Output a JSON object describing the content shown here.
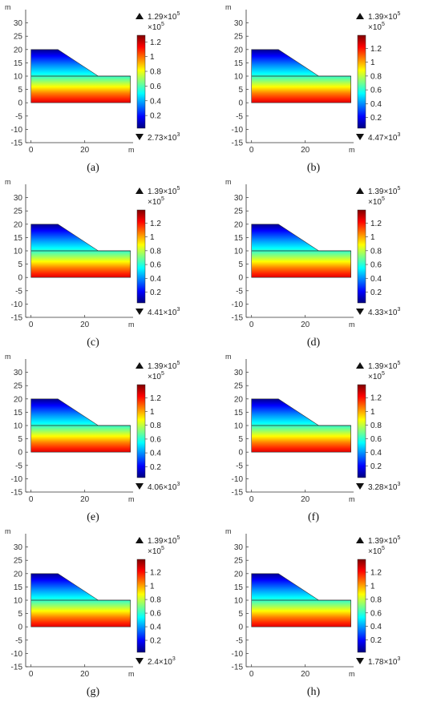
{
  "chart_data": [
    {
      "type": "heatmap",
      "panel_label": "(a)",
      "y_axis_unit": "m",
      "x_axis_unit": "m",
      "y_ticks": [
        30,
        25,
        20,
        15,
        10,
        5,
        0,
        -5,
        -10,
        -15
      ],
      "x_ticks": [
        0,
        20
      ],
      "ylim": [
        -15,
        35
      ],
      "xlim": [
        -2,
        38
      ],
      "max_value": "1.29×10",
      "max_exp": "5",
      "min_value": "2.73×10",
      "min_exp": "3",
      "colorbar_multiplier": "×10",
      "colorbar_multiplier_exp": "5",
      "colorbar_ticks": [
        "1.2",
        "1",
        "0.8",
        "0.6",
        "0.4",
        "0.2"
      ],
      "colorbar_range": [
        0.0273,
        1.29
      ],
      "domain": {
        "crest_height": 20,
        "toe_height": 10,
        "crest_x_end": 10,
        "toe_x_start": 25,
        "x_max": 37,
        "base": 0,
        "water_table": 10
      }
    },
    {
      "type": "heatmap",
      "panel_label": "(b)",
      "y_axis_unit": "m",
      "x_axis_unit": "m",
      "y_ticks": [
        30,
        25,
        20,
        15,
        10,
        5,
        0,
        -5,
        -10,
        -15
      ],
      "x_ticks": [
        0,
        20
      ],
      "ylim": [
        -15,
        35
      ],
      "xlim": [
        -2,
        38
      ],
      "max_value": "1.39×10",
      "max_exp": "5",
      "min_value": "4.47×10",
      "min_exp": "3",
      "colorbar_multiplier": "×10",
      "colorbar_multiplier_exp": "5",
      "colorbar_ticks": [
        "1.2",
        "1",
        "0.8",
        "0.6",
        "0.4",
        "0.2"
      ],
      "colorbar_range": [
        0.0447,
        1.39
      ],
      "domain": {
        "crest_height": 20,
        "toe_height": 10,
        "crest_x_end": 10,
        "toe_x_start": 25,
        "x_max": 37,
        "base": 0,
        "water_table": 10
      }
    },
    {
      "type": "heatmap",
      "panel_label": "(c)",
      "y_axis_unit": "m",
      "x_axis_unit": "m",
      "y_ticks": [
        30,
        25,
        20,
        15,
        10,
        5,
        0,
        -5,
        -10,
        -15
      ],
      "x_ticks": [
        0,
        20
      ],
      "ylim": [
        -15,
        35
      ],
      "xlim": [
        -2,
        38
      ],
      "max_value": "1.39×10",
      "max_exp": "5",
      "min_value": "4.41×10",
      "min_exp": "3",
      "colorbar_multiplier": "×10",
      "colorbar_multiplier_exp": "5",
      "colorbar_ticks": [
        "1.2",
        "1",
        "0.8",
        "0.6",
        "0.4",
        "0.2"
      ],
      "colorbar_range": [
        0.0441,
        1.39
      ],
      "domain": {
        "crest_height": 20,
        "toe_height": 10,
        "crest_x_end": 10,
        "toe_x_start": 25,
        "x_max": 37,
        "base": 0,
        "water_table": 10
      }
    },
    {
      "type": "heatmap",
      "panel_label": "(d)",
      "y_axis_unit": "m",
      "x_axis_unit": "m",
      "y_ticks": [
        30,
        25,
        20,
        15,
        10,
        5,
        0,
        -5,
        -10,
        -15
      ],
      "x_ticks": [
        0,
        20
      ],
      "ylim": [
        -15,
        35
      ],
      "xlim": [
        -2,
        38
      ],
      "max_value": "1.39×10",
      "max_exp": "5",
      "min_value": "4.33×10",
      "min_exp": "3",
      "colorbar_multiplier": "×10",
      "colorbar_multiplier_exp": "5",
      "colorbar_ticks": [
        "1.2",
        "1",
        "0.8",
        "0.6",
        "0.4",
        "0.2"
      ],
      "colorbar_range": [
        0.0433,
        1.39
      ],
      "domain": {
        "crest_height": 20,
        "toe_height": 10,
        "crest_x_end": 10,
        "toe_x_start": 25,
        "x_max": 37,
        "base": 0,
        "water_table": 10
      }
    },
    {
      "type": "heatmap",
      "panel_label": "(e)",
      "y_axis_unit": "m",
      "x_axis_unit": "m",
      "y_ticks": [
        30,
        25,
        20,
        15,
        10,
        5,
        0,
        -5,
        -10,
        -15
      ],
      "x_ticks": [
        0,
        20
      ],
      "ylim": [
        -15,
        35
      ],
      "xlim": [
        -2,
        38
      ],
      "max_value": "1.39×10",
      "max_exp": "5",
      "min_value": "4.06×10",
      "min_exp": "3",
      "colorbar_multiplier": "×10",
      "colorbar_multiplier_exp": "5",
      "colorbar_ticks": [
        "1.2",
        "1",
        "0.8",
        "0.6",
        "0.4",
        "0.2"
      ],
      "colorbar_range": [
        0.0406,
        1.39
      ],
      "domain": {
        "crest_height": 20,
        "toe_height": 10,
        "crest_x_end": 10,
        "toe_x_start": 25,
        "x_max": 37,
        "base": 0,
        "water_table": 10
      }
    },
    {
      "type": "heatmap",
      "panel_label": "(f)",
      "y_axis_unit": "m",
      "x_axis_unit": "m",
      "y_ticks": [
        30,
        25,
        20,
        15,
        10,
        5,
        0,
        -5,
        -10,
        -15
      ],
      "x_ticks": [
        0,
        20
      ],
      "ylim": [
        -15,
        35
      ],
      "xlim": [
        -2,
        38
      ],
      "max_value": "1.39×10",
      "max_exp": "5",
      "min_value": "3.28×10",
      "min_exp": "3",
      "colorbar_multiplier": "×10",
      "colorbar_multiplier_exp": "5",
      "colorbar_ticks": [
        "1.2",
        "1",
        "0.8",
        "0.6",
        "0.4",
        "0.2"
      ],
      "colorbar_range": [
        0.0328,
        1.39
      ],
      "domain": {
        "crest_height": 20,
        "toe_height": 10,
        "crest_x_end": 10,
        "toe_x_start": 25,
        "x_max": 37,
        "base": 0,
        "water_table": 10
      }
    },
    {
      "type": "heatmap",
      "panel_label": "(g)",
      "y_axis_unit": "m",
      "x_axis_unit": "m",
      "y_ticks": [
        30,
        25,
        20,
        15,
        10,
        5,
        0,
        -5,
        -10,
        -15
      ],
      "x_ticks": [
        0,
        20
      ],
      "ylim": [
        -15,
        35
      ],
      "xlim": [
        -2,
        38
      ],
      "max_value": "1.39×10",
      "max_exp": "5",
      "min_value": "2.4×10",
      "min_exp": "3",
      "colorbar_multiplier": "×10",
      "colorbar_multiplier_exp": "5",
      "colorbar_ticks": [
        "1.2",
        "1",
        "0.8",
        "0.6",
        "0.4",
        "0.2"
      ],
      "colorbar_range": [
        0.024,
        1.39
      ],
      "domain": {
        "crest_height": 20,
        "toe_height": 10,
        "crest_x_end": 10,
        "toe_x_start": 25,
        "x_max": 37,
        "base": 0,
        "water_table": 10
      }
    },
    {
      "type": "heatmap",
      "panel_label": "(h)",
      "y_axis_unit": "m",
      "x_axis_unit": "m",
      "y_ticks": [
        30,
        25,
        20,
        15,
        10,
        5,
        0,
        -5,
        -10,
        -15
      ],
      "x_ticks": [
        0,
        20
      ],
      "ylim": [
        -15,
        35
      ],
      "xlim": [
        -2,
        38
      ],
      "max_value": "1.39×10",
      "max_exp": "5",
      "min_value": "1.78×10",
      "min_exp": "3",
      "colorbar_multiplier": "×10",
      "colorbar_multiplier_exp": "5",
      "colorbar_ticks": [
        "1.2",
        "1",
        "0.8",
        "0.6",
        "0.4",
        "0.2"
      ],
      "colorbar_range": [
        0.0178,
        1.39
      ],
      "domain": {
        "crest_height": 20,
        "toe_height": 10,
        "crest_x_end": 10,
        "toe_x_start": 25,
        "x_max": 37,
        "base": 0,
        "water_table": 10
      }
    }
  ],
  "colors": {
    "jet": [
      "#00007f",
      "#0000ff",
      "#0080ff",
      "#00ffff",
      "#80ff80",
      "#ffff00",
      "#ff8000",
      "#ff0000",
      "#7f0000"
    ],
    "axis": "#333333",
    "water_table": "#222222"
  }
}
